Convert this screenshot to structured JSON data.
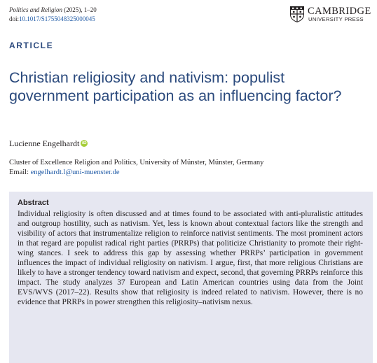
{
  "header": {
    "journal_name": "Politics and Religion",
    "journal_meta": " (2025), 1–20",
    "doi_prefix": "doi:",
    "doi_link": "10.1017/S1755048325000045"
  },
  "publisher": {
    "logo_line1": "CAMBRIDGE",
    "logo_line2": "UNIVERSITY PRESS",
    "logo_icon": "cambridge-shield-icon"
  },
  "article": {
    "type_label": "ARTICLE",
    "title": "Christian religiosity and nativism: populist government participation as an influencing factor?",
    "author": "Lucienne Engelhardt",
    "orcid_icon": "orcid-icon",
    "orcid_glyph": "iD",
    "affiliation": "Cluster of Excellence Religion and Politics, University of Münster, Münster, Germany",
    "email_label": "Email: ",
    "email": "engelhardt.l@uni-muenster.de"
  },
  "abstract": {
    "heading": "Abstract",
    "text": "Individual religiosity is often discussed and at times found to be associated with anti-pluralistic attitudes and outgroup hostility, such as nativism. Yet, less is known about contextual factors like the strength and visibility of actors that instrumentalize religion to reinforce nativist sentiments. The most prominent actors in that regard are populist radical right parties (PRRPs) that politicize Christianity to promote their right-wing stances. I seek to address this gap by assessing whether PRRPs’ participation in government influences the impact of individual religiosity on nativism. I argue, first, that more religious Christians are likely to have a stronger tendency toward nativism and expect, second, that governing PRRPs reinforce this impact. The study analyzes 37 European and Latin American countries using data from the Joint EVS/WVS (2017–22). Results show that religiosity is indeed related to nativism. However, there is no evidence that PRRPs in power strengthen this religiosity–nativism nexus."
  },
  "colors": {
    "accent": "#2b4a7d",
    "link": "#1f5aa6",
    "abstract_bg": "#e6e7f1",
    "orcid": "#a6ce39"
  }
}
